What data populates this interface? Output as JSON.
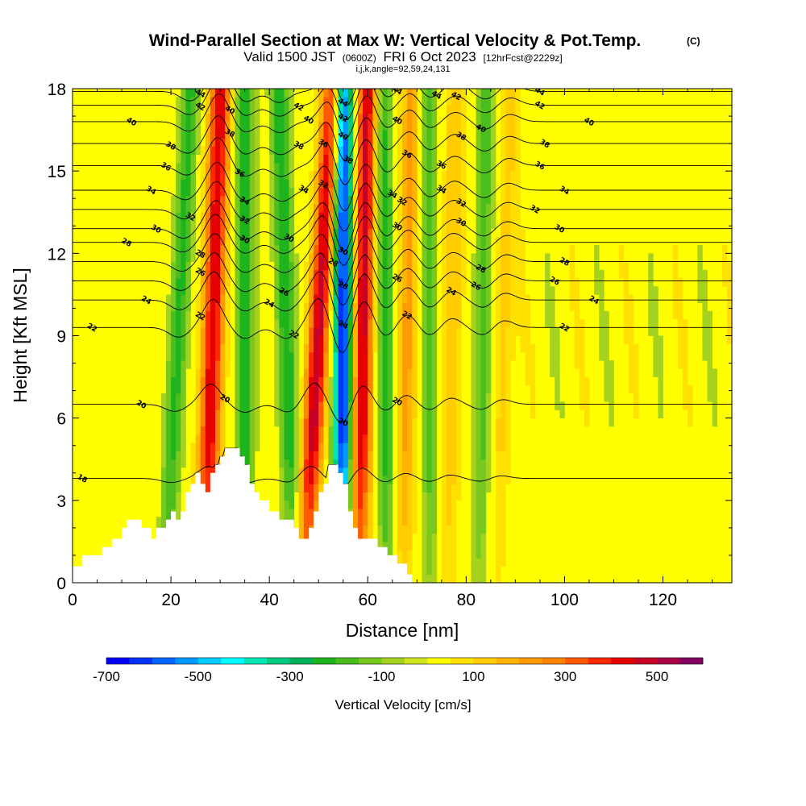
{
  "title": {
    "main": "Wind-Parallel Section at Max W: Vertical Velocity & Pot.Temp.",
    "copyright": "(C)",
    "valid_prefix": "Valid 1500 JST",
    "valid_utc": "(0600Z)",
    "valid_date": "FRI 6 Oct 2023",
    "forecast": "[12hrFcst@2229z]",
    "meta": "i,j,k,angle=92,59,24,131"
  },
  "chart_data": {
    "type": "heatmap",
    "xlabel": "Distance [nm]",
    "ylabel": "Height [Kft MSL]",
    "xlim": [
      0,
      134
    ],
    "ylim": [
      0,
      18
    ],
    "x_ticks": [
      {
        "value": 0,
        "label": "0"
      },
      {
        "value": 20,
        "label": "20"
      },
      {
        "value": 40,
        "label": "40"
      },
      {
        "value": 60,
        "label": "60"
      },
      {
        "value": 80,
        "label": "80"
      },
      {
        "value": 100,
        "label": "100"
      },
      {
        "value": 120,
        "label": "120"
      }
    ],
    "y_ticks": [
      {
        "value": 0,
        "label": "0"
      },
      {
        "value": 3,
        "label": "3"
      },
      {
        "value": 6,
        "label": "6"
      },
      {
        "value": 9,
        "label": "9"
      },
      {
        "value": 12,
        "label": "12"
      },
      {
        "value": 15,
        "label": "15"
      },
      {
        "value": 18,
        "label": "18"
      }
    ],
    "colorbar": {
      "title": "Vertical Velocity [cm/s]",
      "range": [
        -700,
        600
      ],
      "step": 50,
      "colors": [
        "#0000ff",
        "#0033ff",
        "#0066ff",
        "#0099ff",
        "#00ccff",
        "#00ffff",
        "#00e6b3",
        "#00cc80",
        "#00b359",
        "#1eb41e",
        "#4bbe1e",
        "#78c81e",
        "#a5d21e",
        "#d2e61e",
        "#ffff00",
        "#ffe100",
        "#ffcd00",
        "#ffb400",
        "#ff9b00",
        "#ff8200",
        "#ff5a00",
        "#ff2800",
        "#e60000",
        "#c80028",
        "#aa0046",
        "#82005f"
      ],
      "tick_labels": [
        {
          "value": -700,
          "label": "-700"
        },
        {
          "value": -500,
          "label": "-500"
        },
        {
          "value": -300,
          "label": "-300"
        },
        {
          "value": -100,
          "label": "-100"
        },
        {
          "value": 100,
          "label": "100"
        },
        {
          "value": 300,
          "label": "300"
        },
        {
          "value": 500,
          "label": "500"
        }
      ]
    },
    "updraft_bands": [
      {
        "x_base": 27,
        "x_top": 30,
        "w_max": 450
      },
      {
        "x_base": 47,
        "x_top": 53,
        "w_max": 480
      },
      {
        "x_base": 58,
        "x_top": 60,
        "w_max": 480
      },
      {
        "x_base": 67,
        "x_top": 69,
        "w_max": 220
      },
      {
        "x_base": 76,
        "x_top": 78,
        "w_max": 150
      },
      {
        "x_base": 86,
        "x_top": 89,
        "w_max": 120
      }
    ],
    "downdraft_bands": [
      {
        "x_base": 55,
        "x_top": 55,
        "w_min": -680
      },
      {
        "x_base": 35,
        "x_top": 35,
        "w_min": -250
      },
      {
        "x_base": 19,
        "x_top": 24,
        "w_min": -220
      },
      {
        "x_base": 45,
        "x_top": 42,
        "w_min": -250
      },
      {
        "x_base": 64,
        "x_top": 63,
        "w_min": -250
      },
      {
        "x_base": 73,
        "x_top": 72,
        "w_min": -200
      },
      {
        "x_base": 83,
        "x_top": 84,
        "w_min": -180
      }
    ],
    "terrain": [
      [
        0,
        0.6
      ],
      [
        2,
        0.6
      ],
      [
        2,
        1
      ],
      [
        6,
        1
      ],
      [
        6,
        1.3
      ],
      [
        8,
        1.3
      ],
      [
        8,
        1.6
      ],
      [
        10,
        1.6
      ],
      [
        10,
        2
      ],
      [
        11,
        2
      ],
      [
        11,
        2.3
      ],
      [
        14,
        2.3
      ],
      [
        14,
        2
      ],
      [
        16,
        2
      ],
      [
        16,
        1.6
      ],
      [
        17,
        1.6
      ],
      [
        17,
        2
      ],
      [
        19,
        2
      ],
      [
        19,
        2.3
      ],
      [
        20,
        2.3
      ],
      [
        20,
        2.6
      ],
      [
        21,
        2.6
      ],
      [
        21,
        2.3
      ],
      [
        22,
        2.3
      ],
      [
        22,
        2.6
      ],
      [
        23,
        2.6
      ],
      [
        23,
        3.3
      ],
      [
        24,
        3.3
      ],
      [
        24,
        3.6
      ],
      [
        25,
        3.6
      ],
      [
        25,
        4
      ],
      [
        26,
        4
      ],
      [
        26,
        3.6
      ],
      [
        27,
        3.6
      ],
      [
        27,
        3.3
      ],
      [
        28,
        3.3
      ],
      [
        28,
        4
      ],
      [
        29,
        4
      ],
      [
        29,
        4.3
      ],
      [
        30,
        4.3
      ],
      [
        30,
        4.6
      ],
      [
        31,
        4.6
      ],
      [
        31,
        4.9
      ],
      [
        34,
        4.9
      ],
      [
        34,
        4.6
      ],
      [
        35,
        4.6
      ],
      [
        35,
        4.3
      ],
      [
        36,
        4.3
      ],
      [
        36,
        3.6
      ],
      [
        37,
        3.6
      ],
      [
        37,
        3.3
      ],
      [
        38,
        3.3
      ],
      [
        38,
        3
      ],
      [
        40,
        3
      ],
      [
        40,
        2.6
      ],
      [
        42,
        2.6
      ],
      [
        42,
        2.3
      ],
      [
        45,
        2.3
      ],
      [
        45,
        2
      ],
      [
        46,
        2
      ],
      [
        46,
        1.6
      ],
      [
        48,
        1.6
      ],
      [
        48,
        2
      ],
      [
        49,
        2
      ],
      [
        49,
        2.6
      ],
      [
        50,
        2.6
      ],
      [
        50,
        3.3
      ],
      [
        51,
        3.3
      ],
      [
        51,
        3.6
      ],
      [
        52,
        3.6
      ],
      [
        52,
        4.3
      ],
      [
        54,
        4.3
      ],
      [
        54,
        4
      ],
      [
        55,
        4
      ],
      [
        55,
        3.6
      ],
      [
        56,
        3.6
      ],
      [
        56,
        2.6
      ],
      [
        57,
        2.6
      ],
      [
        57,
        2
      ],
      [
        58,
        2
      ],
      [
        58,
        1.6
      ],
      [
        62,
        1.6
      ],
      [
        62,
        1.3
      ],
      [
        64,
        1.3
      ],
      [
        64,
        1
      ],
      [
        66,
        1
      ],
      [
        66,
        0.7
      ],
      [
        68,
        0.7
      ],
      [
        68,
        0.3
      ],
      [
        69,
        0.3
      ],
      [
        69,
        0
      ],
      [
        134,
        0
      ]
    ],
    "theta_contours": [
      {
        "label": "18",
        "y0": 3.8,
        "labels_at": [
          2
        ]
      },
      {
        "label": "20",
        "y0": 6.5,
        "labels_at": [
          14,
          31,
          55,
          66
        ]
      },
      {
        "label": "22",
        "y0": 9.3,
        "labels_at": [
          4,
          26,
          45,
          68,
          100
        ]
      },
      {
        "label": "24",
        "y0": 10.3,
        "labels_at": [
          15,
          40,
          55,
          77,
          106
        ]
      },
      {
        "label": "26",
        "y0": 11.0,
        "labels_at": [
          26,
          43,
          66,
          82,
          98
        ]
      },
      {
        "label": "28",
        "y0": 11.7,
        "labels_at": [
          26,
          53,
          55,
          83,
          100
        ]
      },
      {
        "label": "28",
        "y0": 12.4,
        "labels_at": [
          11
        ]
      },
      {
        "label": "30",
        "y0": 12.9,
        "labels_at": [
          17,
          35,
          44,
          55,
          66,
          79,
          99
        ]
      },
      {
        "label": "32",
        "y0": 13.6,
        "labels_at": [
          24,
          35,
          51,
          67,
          79,
          94
        ]
      },
      {
        "label": "34",
        "y0": 14.3,
        "labels_at": [
          16,
          35,
          47,
          65,
          75,
          100
        ]
      },
      {
        "label": "36",
        "y0": 15.2,
        "labels_at": [
          19,
          34,
          51,
          68,
          75,
          95
        ]
      },
      {
        "label": "38",
        "y0": 16.0,
        "labels_at": [
          20,
          32,
          46,
          56,
          79,
          96
        ]
      },
      {
        "label": "40",
        "y0": 16.8,
        "labels_at": [
          12,
          32,
          48,
          55,
          66,
          83,
          105
        ]
      },
      {
        "label": "42",
        "y0": 17.4,
        "labels_at": [
          26,
          46,
          55,
          61,
          78,
          95
        ]
      },
      {
        "label": "44",
        "y0": 17.9,
        "labels_at": [
          26,
          55,
          66,
          74,
          95
        ]
      }
    ]
  }
}
